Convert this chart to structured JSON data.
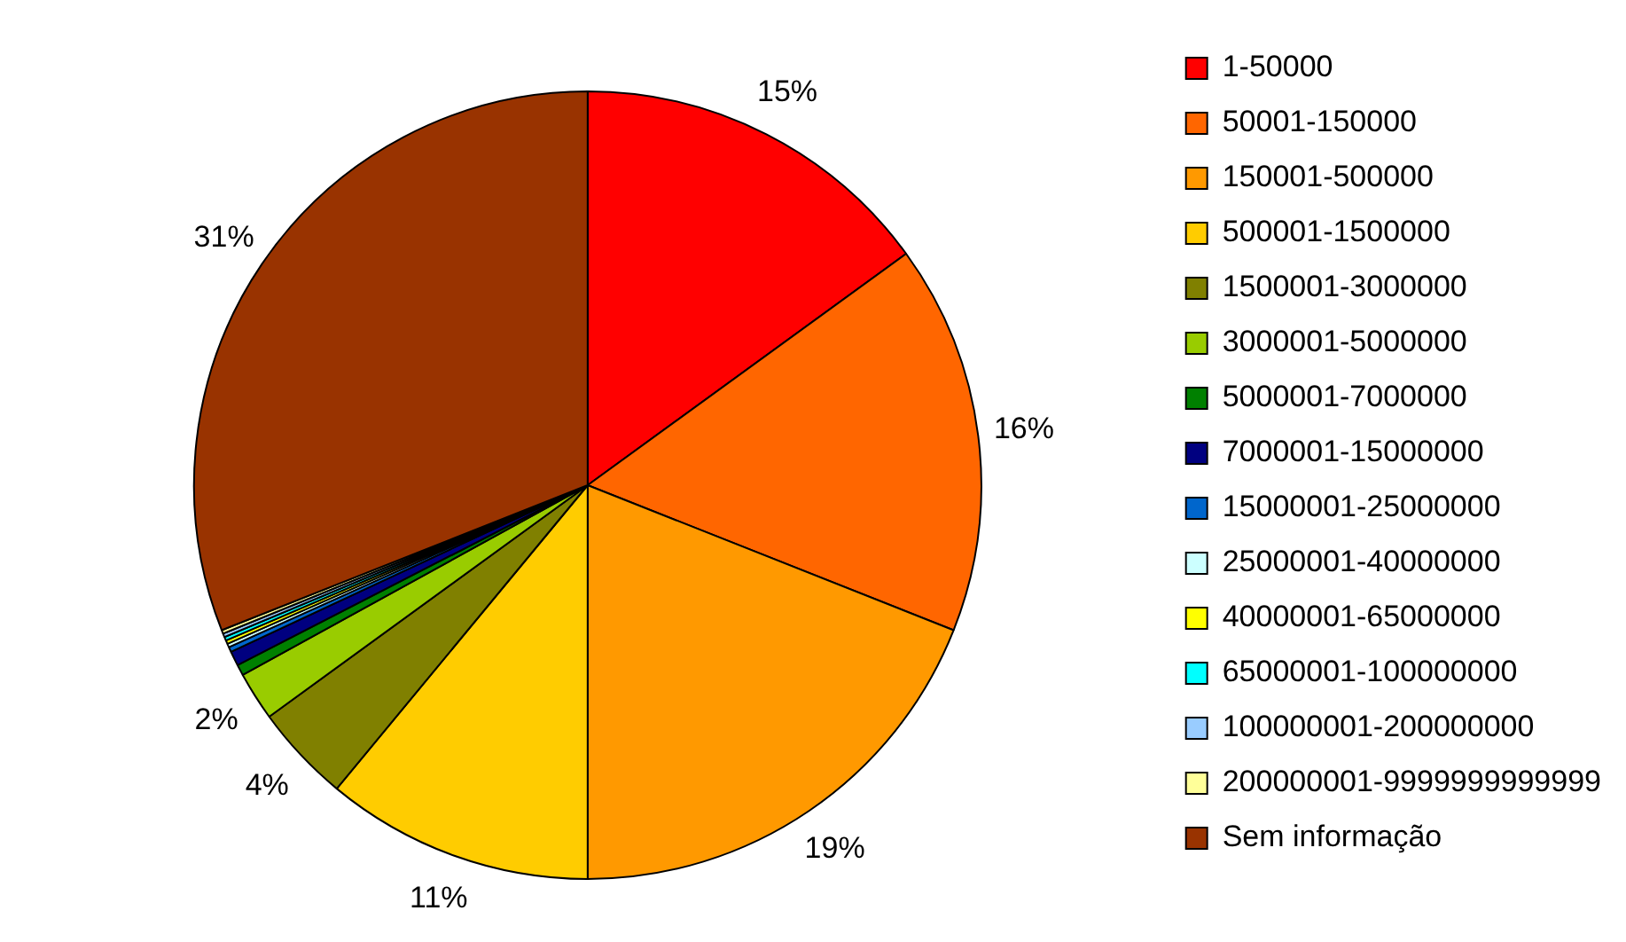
{
  "chart_data": {
    "type": "pie",
    "categories": [
      "1-50000",
      "50001-150000",
      "150001-500000",
      "500001-1500000",
      "1500001-3000000",
      "3000001-5000000",
      "5000001-7000000",
      "7000001-15000000",
      "15000001-25000000",
      "25000001-40000000",
      "40000001-65000000",
      "65000001-100000000",
      "100000001-200000000",
      "200000001-9999999999999",
      "Sem informação"
    ],
    "values": [
      15,
      16,
      19,
      11,
      4,
      2,
      0.45,
      0.6,
      0.2,
      0.15,
      0.15,
      0.15,
      0.15,
      0.15,
      31
    ],
    "colors": [
      "#ff0000",
      "#ff6600",
      "#ff9900",
      "#ffcc00",
      "#808000",
      "#99cc00",
      "#008000",
      "#000080",
      "#0066cc",
      "#ccffff",
      "#ffff00",
      "#00ffff",
      "#99ccff",
      "#ffff99",
      "#993300"
    ],
    "value_labels": [
      "15%",
      "16%",
      "19%",
      "11%",
      "4%",
      "2%",
      null,
      null,
      null,
      null,
      null,
      null,
      null,
      null,
      "31%"
    ],
    "legend": "right"
  }
}
